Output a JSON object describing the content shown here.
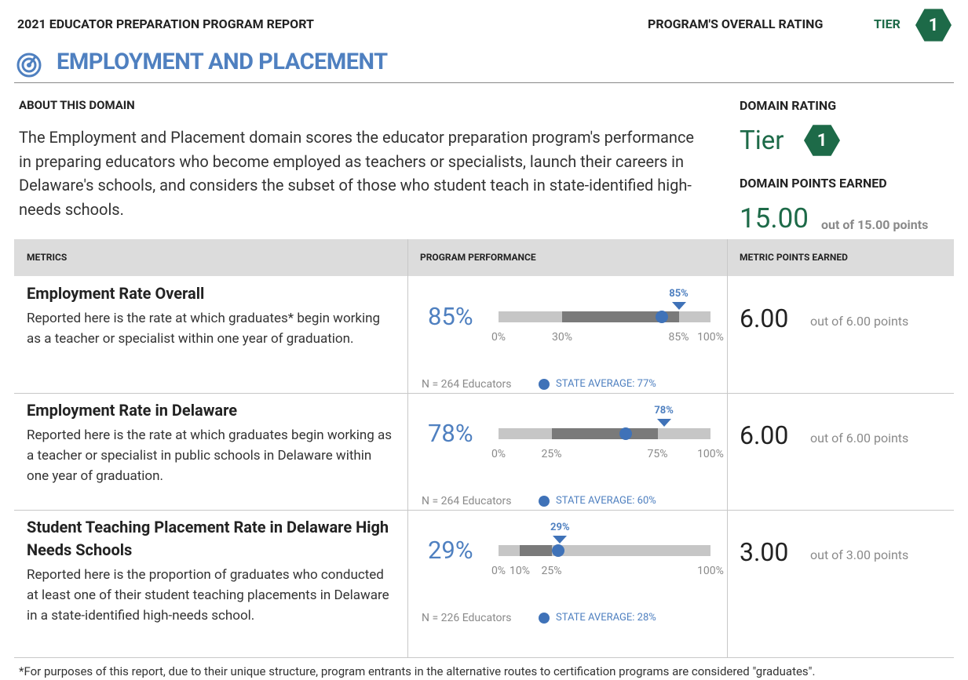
{
  "header": {
    "title": "2021 EDUCATOR PREPARATION PROGRAM REPORT",
    "overall_rating_label": "PROGRAM'S OVERALL RATING",
    "tier_label": "TIER",
    "tier": "1"
  },
  "domain": {
    "title": "EMPLOYMENT AND PLACEMENT",
    "about_heading": "ABOUT THIS DOMAIN",
    "about_text": "The Employment and Placement domain scores the educator preparation program's performance in preparing educators who become employed as teachers or specialists, launch their careers in Delaware's schools, and considers the subset of those who student teach in state-identified high-needs schools.",
    "rating_heading": "DOMAIN RATING",
    "rating_label": "Tier",
    "rating": "1",
    "points_heading": "DOMAIN POINTS EARNED",
    "points": "15.00",
    "points_out_of": "out of 15.00 points"
  },
  "table": {
    "columns": [
      "METRICS",
      "PROGRAM PERFORMANCE",
      "METRIC POINTS EARNED"
    ],
    "rows": [
      {
        "name": "Employment Rate Overall",
        "description": "Reported here is the rate at which graduates* begin working as a teacher or specialist within one year of graduation.",
        "performance": {
          "value": 85,
          "label": "85%"
        },
        "ticks": [
          {
            "value": 0,
            "label": "0%"
          },
          {
            "value": 30,
            "label": "30%"
          },
          {
            "value": 85,
            "label": "85%"
          },
          {
            "value": 100,
            "label": "100%"
          }
        ],
        "n": "N =  264 Educators",
        "state_average": {
          "value": 77,
          "label": "STATE AVERAGE: 77%"
        },
        "points": "6.00",
        "points_out_of": "out of 6.00 points"
      },
      {
        "name": "Employment Rate in Delaware",
        "description": "Reported here is the rate at which graduates begin working as a teacher or specialist in public schools in Delaware within one year of graduation.",
        "performance": {
          "value": 78,
          "label": "78%"
        },
        "ticks": [
          {
            "value": 0,
            "label": "0%"
          },
          {
            "value": 25,
            "label": "25%"
          },
          {
            "value": 75,
            "label": "75%"
          },
          {
            "value": 100,
            "label": "100%"
          }
        ],
        "n": "N =  264 Educators",
        "state_average": {
          "value": 60,
          "label": "STATE AVERAGE: 60%"
        },
        "points": "6.00",
        "points_out_of": "out of 6.00 points"
      },
      {
        "name": "Student Teaching Placement Rate in Delaware High Needs Schools",
        "description": "Reported here is the proportion of graduates who conducted at least one of their student teaching placements in Delaware in a state-identified high-needs school.",
        "performance": {
          "value": 29,
          "label": "29%"
        },
        "ticks": [
          {
            "value": 0,
            "label": "0%"
          },
          {
            "value": 10,
            "label": "10%"
          },
          {
            "value": 25,
            "label": "25%"
          },
          {
            "value": 100,
            "label": "100%"
          }
        ],
        "n": "N =  226 Educators",
        "state_average": {
          "value": 28,
          "label": "STATE AVERAGE: 28%"
        },
        "points": "3.00",
        "points_out_of": "out of 3.00 points"
      }
    ]
  },
  "footnote": "*For purposes of this report, due to their unique structure, program entrants in the alternative routes to certification programs are considered \"graduates\"."
}
